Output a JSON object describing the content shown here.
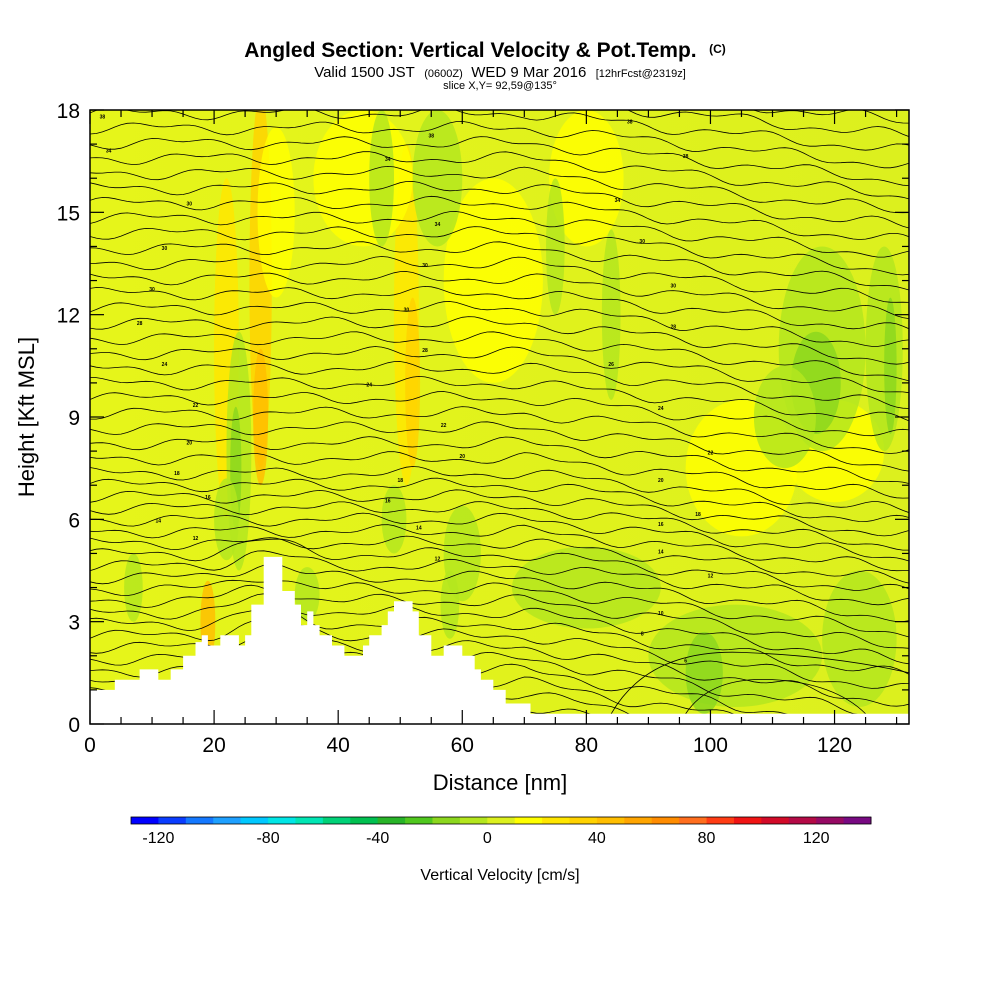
{
  "chart_data": {
    "type": "heatmap",
    "title": "Angled Section: Vertical Velocity & Pot.Temp.",
    "title_unit": "(C)",
    "subtitle_valid": "Valid 1500 JST",
    "subtitle_utc": "(0600Z)",
    "subtitle_date": "WED 9 Mar 2016",
    "subtitle_fcst": "[12hrFcst@2319z]",
    "slice_text": "slice X,Y= 92,59@135°",
    "xlabel": "Distance [nm]",
    "ylabel": "Height [Kft MSL]",
    "xlim": [
      0,
      132
    ],
    "ylim": [
      0,
      18
    ],
    "x_ticks": [
      0,
      20,
      40,
      60,
      80,
      100,
      120
    ],
    "y_ticks": [
      0,
      3,
      6,
      9,
      12,
      15,
      18
    ],
    "colorbar": {
      "label": "Vertical Velocity [cm/s]",
      "min": -130,
      "max": 140,
      "step": 10,
      "tick_values": [
        -120,
        -80,
        -40,
        0,
        40,
        80,
        120
      ],
      "tick_labels": [
        "-120",
        "-80",
        "-40",
        "0",
        "40",
        "80",
        "120"
      ],
      "colors": [
        "#0000ff",
        "#0a3cff",
        "#1478ff",
        "#1ea0ff",
        "#00c8ff",
        "#00e6e6",
        "#00e6b4",
        "#00d278",
        "#00c050",
        "#28b428",
        "#50c81e",
        "#8cd71e",
        "#b4e61e",
        "#dcf01e",
        "#ffff00",
        "#ffe600",
        "#ffd200",
        "#ffbe00",
        "#ffa500",
        "#ff8c00",
        "#ff6e1e",
        "#ff3c14",
        "#f01414",
        "#d20a28",
        "#b40a46",
        "#960a64",
        "#780a82"
      ]
    },
    "terrain": [
      [
        0,
        1
      ],
      [
        4,
        1
      ],
      [
        4,
        1.3
      ],
      [
        8,
        1.3
      ],
      [
        8,
        1.6
      ],
      [
        11,
        1.6
      ],
      [
        11,
        1.3
      ],
      [
        13,
        1.3
      ],
      [
        13,
        1.6
      ],
      [
        15,
        1.6
      ],
      [
        15,
        2
      ],
      [
        17,
        2
      ],
      [
        17,
        2.4
      ],
      [
        18,
        2.4
      ],
      [
        18,
        2.6
      ],
      [
        19,
        2.6
      ],
      [
        19,
        2.3
      ],
      [
        21,
        2.3
      ],
      [
        21,
        2.6
      ],
      [
        24,
        2.6
      ],
      [
        24,
        2.3
      ],
      [
        25,
        2.3
      ],
      [
        25,
        2.6
      ],
      [
        26,
        2.6
      ],
      [
        26,
        3.5
      ],
      [
        28,
        3.5
      ],
      [
        28,
        4.9
      ],
      [
        31,
        4.9
      ],
      [
        31,
        3.9
      ],
      [
        33,
        3.9
      ],
      [
        33,
        3.5
      ],
      [
        34,
        3.5
      ],
      [
        34,
        2.9
      ],
      [
        35,
        2.9
      ],
      [
        35,
        3.3
      ],
      [
        36,
        3.3
      ],
      [
        36,
        2.9
      ],
      [
        37,
        2.9
      ],
      [
        37,
        2.6
      ],
      [
        39,
        2.6
      ],
      [
        39,
        2.3
      ],
      [
        41,
        2.3
      ],
      [
        41,
        2
      ],
      [
        44,
        2
      ],
      [
        44,
        2.3
      ],
      [
        45,
        2.3
      ],
      [
        45,
        2.6
      ],
      [
        47,
        2.6
      ],
      [
        47,
        2.9
      ],
      [
        48,
        2.9
      ],
      [
        48,
        3.3
      ],
      [
        49,
        3.3
      ],
      [
        49,
        3.6
      ],
      [
        52,
        3.6
      ],
      [
        52,
        3.3
      ],
      [
        53,
        3.3
      ],
      [
        53,
        2.6
      ],
      [
        55,
        2.6
      ],
      [
        55,
        2
      ],
      [
        57,
        2
      ],
      [
        57,
        2.3
      ],
      [
        60,
        2.3
      ],
      [
        60,
        2
      ],
      [
        62,
        2
      ],
      [
        62,
        1.6
      ],
      [
        63,
        1.6
      ],
      [
        63,
        1.3
      ],
      [
        65,
        1.3
      ],
      [
        65,
        1
      ],
      [
        67,
        1
      ],
      [
        67,
        0.6
      ],
      [
        71,
        0.6
      ],
      [
        71,
        0.3
      ],
      [
        132,
        0.3
      ],
      [
        132,
        0
      ]
    ],
    "isentrope_labels": [
      {
        "x": 2,
        "y": 17.75,
        "t": "38"
      },
      {
        "x": 3,
        "y": 16.75,
        "t": "34"
      },
      {
        "x": 16,
        "y": 15.2,
        "t": "30"
      },
      {
        "x": 12,
        "y": 13.9,
        "t": "30"
      },
      {
        "x": 10,
        "y": 12.7,
        "t": "30"
      },
      {
        "x": 8,
        "y": 11.7,
        "t": "28"
      },
      {
        "x": 12,
        "y": 10.5,
        "t": "24"
      },
      {
        "x": 17,
        "y": 9.3,
        "t": "22"
      },
      {
        "x": 16,
        "y": 8.2,
        "t": "20"
      },
      {
        "x": 14,
        "y": 7.3,
        "t": "18"
      },
      {
        "x": 19,
        "y": 6.6,
        "t": "16"
      },
      {
        "x": 11,
        "y": 5.9,
        "t": "14"
      },
      {
        "x": 17,
        "y": 5.4,
        "t": "12"
      },
      {
        "x": 55,
        "y": 17.2,
        "t": "38"
      },
      {
        "x": 48,
        "y": 16.5,
        "t": "34"
      },
      {
        "x": 56,
        "y": 14.6,
        "t": "34"
      },
      {
        "x": 54,
        "y": 13.4,
        "t": "30"
      },
      {
        "x": 51,
        "y": 12.1,
        "t": "30"
      },
      {
        "x": 54,
        "y": 10.9,
        "t": "28"
      },
      {
        "x": 45,
        "y": 9.9,
        "t": "24"
      },
      {
        "x": 57,
        "y": 8.7,
        "t": "22"
      },
      {
        "x": 60,
        "y": 7.8,
        "t": "20"
      },
      {
        "x": 50,
        "y": 7.1,
        "t": "18"
      },
      {
        "x": 48,
        "y": 6.5,
        "t": "16"
      },
      {
        "x": 53,
        "y": 5.7,
        "t": "14"
      },
      {
        "x": 56,
        "y": 4.8,
        "t": "12"
      },
      {
        "x": 87,
        "y": 17.6,
        "t": "38"
      },
      {
        "x": 96,
        "y": 16.6,
        "t": "38"
      },
      {
        "x": 85,
        "y": 15.3,
        "t": "34"
      },
      {
        "x": 89,
        "y": 14.1,
        "t": "30"
      },
      {
        "x": 94,
        "y": 12.8,
        "t": "30"
      },
      {
        "x": 94,
        "y": 11.6,
        "t": "28"
      },
      {
        "x": 84,
        "y": 10.5,
        "t": "26"
      },
      {
        "x": 92,
        "y": 9.2,
        "t": "24"
      },
      {
        "x": 100,
        "y": 7.9,
        "t": "22"
      },
      {
        "x": 92,
        "y": 7.1,
        "t": "20"
      },
      {
        "x": 98,
        "y": 6.1,
        "t": "18"
      },
      {
        "x": 92,
        "y": 5.8,
        "t": "16"
      },
      {
        "x": 92,
        "y": 5.0,
        "t": "14"
      },
      {
        "x": 100,
        "y": 4.3,
        "t": "12"
      },
      {
        "x": 92,
        "y": 3.2,
        "t": "10"
      },
      {
        "x": 89,
        "y": 2.6,
        "t": "8"
      },
      {
        "x": 96,
        "y": 1.8,
        "t": "6"
      }
    ]
  }
}
